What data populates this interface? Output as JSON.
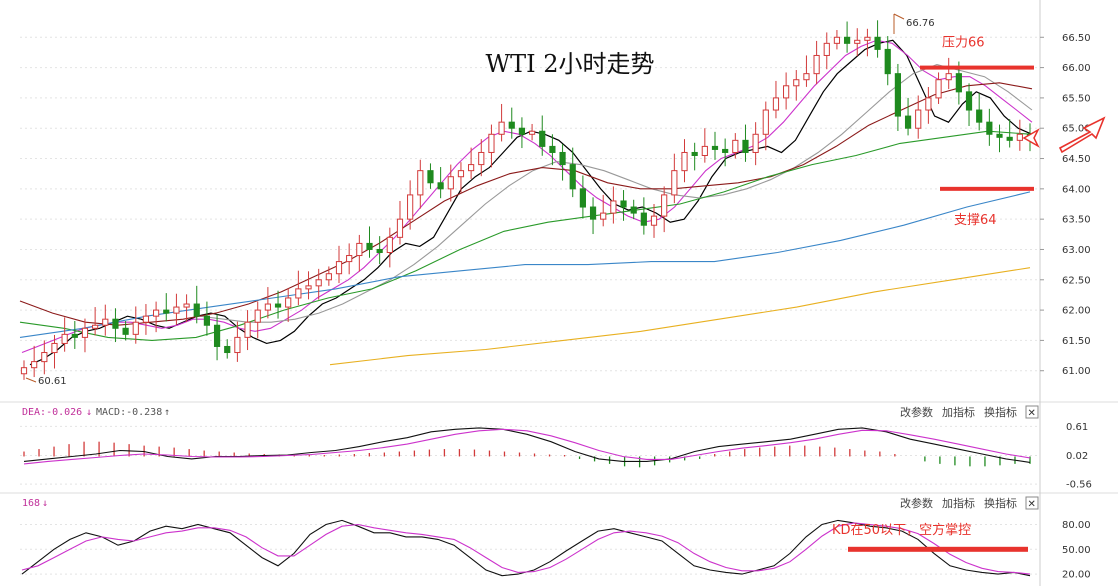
{
  "chart_data": {
    "type": "candlestick",
    "title": "WTI 2小时走势",
    "price_axis": {
      "ylim": [
        60.55,
        66.95
      ],
      "ticks": [
        "66.50",
        "66.00",
        "65.50",
        "65.00",
        "64.50",
        "64.00",
        "63.50",
        "63.00",
        "62.50",
        "62.00",
        "61.50",
        "61.00"
      ],
      "tick_values": [
        66.5,
        66.0,
        65.5,
        65.0,
        64.5,
        64.0,
        63.5,
        63.0,
        62.5,
        62.0,
        61.5,
        61.0
      ]
    },
    "high_marker": "66.76",
    "low_marker": "60.61",
    "closes": [
      61.05,
      61.15,
      61.3,
      61.45,
      61.6,
      61.55,
      61.7,
      61.75,
      61.85,
      61.7,
      61.6,
      61.8,
      61.9,
      62.0,
      61.95,
      62.05,
      62.1,
      61.9,
      61.75,
      61.4,
      61.3,
      61.55,
      61.8,
      62.0,
      62.1,
      62.05,
      62.2,
      62.35,
      62.4,
      62.5,
      62.6,
      62.8,
      62.9,
      63.1,
      63.0,
      62.95,
      63.2,
      63.5,
      63.9,
      64.3,
      64.1,
      64.0,
      64.2,
      64.3,
      64.4,
      64.6,
      64.9,
      65.1,
      65.0,
      64.9,
      64.95,
      64.7,
      64.6,
      64.4,
      64.0,
      63.7,
      63.5,
      63.6,
      63.8,
      63.7,
      63.6,
      63.4,
      63.55,
      63.9,
      64.3,
      64.6,
      64.55,
      64.7,
      64.65,
      64.6,
      64.8,
      64.6,
      64.9,
      65.3,
      65.5,
      65.7,
      65.8,
      65.9,
      66.2,
      66.4,
      66.5,
      66.4,
      66.45,
      66.5,
      66.3,
      65.9,
      65.2,
      65.0,
      65.3,
      65.5,
      65.8,
      65.9,
      65.6,
      65.3,
      65.1,
      64.9,
      64.85,
      64.8,
      64.9,
      64.85
    ],
    "ma_lines": [
      {
        "color": "#000000",
        "values": [
          61.1,
          61.2,
          61.35,
          61.55,
          61.65,
          61.7,
          61.8,
          61.9,
          61.85,
          61.75,
          61.7,
          61.8,
          61.9,
          61.95,
          61.9,
          61.7,
          61.55,
          61.45,
          61.5,
          61.65,
          61.9,
          62.1,
          62.2,
          62.35,
          62.5,
          62.7,
          62.95,
          63.1,
          63.05,
          63.2,
          63.6,
          64.0,
          64.2,
          64.35,
          64.6,
          64.85,
          64.95,
          64.9,
          64.8,
          64.6,
          64.3,
          64.0,
          63.75,
          63.65,
          63.7,
          63.6,
          63.45,
          63.5,
          63.8,
          64.2,
          64.5,
          64.6,
          64.65,
          64.7,
          64.6,
          64.8,
          65.2,
          65.6,
          65.9,
          66.1,
          66.3,
          66.4,
          66.45,
          66.2,
          65.7,
          65.2,
          65.1,
          65.4,
          65.6,
          65.5,
          65.2,
          65.0,
          64.9
        ]
      },
      {
        "color": "#cc33cc",
        "values": [
          61.3,
          61.4,
          61.5,
          61.6,
          61.7,
          61.75,
          61.8,
          61.8,
          61.75,
          61.7,
          61.75,
          61.85,
          61.85,
          61.8,
          61.7,
          61.65,
          61.7,
          61.85,
          62.0,
          62.2,
          62.35,
          62.5,
          62.7,
          62.95,
          63.2,
          63.5,
          63.8,
          64.1,
          64.4,
          64.65,
          64.85,
          64.95,
          64.9,
          64.75,
          64.55,
          64.3,
          64.05,
          63.85,
          63.7,
          63.55,
          63.45,
          63.5,
          63.7,
          64.0,
          64.3,
          64.5,
          64.6,
          64.7,
          64.85,
          65.1,
          65.4,
          65.7,
          65.95,
          66.2,
          66.35,
          66.45,
          66.4,
          66.2,
          65.95,
          65.8,
          65.85,
          65.85,
          65.7,
          65.5,
          65.3,
          65.1
        ]
      },
      {
        "color": "#999999",
        "values": [
          61.9,
          61.85,
          61.8,
          61.8,
          61.85,
          61.95,
          62.1,
          62.3,
          62.5,
          62.75,
          63.05,
          63.4,
          63.75,
          64.05,
          64.3,
          64.45,
          64.4,
          64.3,
          64.15,
          64.0,
          63.9,
          63.85,
          63.9,
          64.0,
          64.15,
          64.35,
          64.6,
          64.9,
          65.25,
          65.6,
          65.9,
          66.05,
          65.95,
          65.85,
          65.6,
          65.3
        ]
      },
      {
        "color": "#8b1a1a",
        "values": [
          62.15,
          61.95,
          61.8,
          61.75,
          61.8,
          61.85,
          61.95,
          62.1,
          62.3,
          62.55,
          62.8,
          63.1,
          63.45,
          63.8,
          64.05,
          64.25,
          64.35,
          64.3,
          64.1,
          64.0,
          64.0,
          64.05,
          64.1,
          64.2,
          64.4,
          64.7,
          65.05,
          65.3,
          65.55,
          65.7,
          65.75,
          65.65
        ]
      },
      {
        "color": "#2a9a2a",
        "values": [
          61.8,
          61.7,
          61.55,
          61.5,
          61.55,
          61.75,
          62.0,
          62.2,
          62.35,
          62.65,
          63.0,
          63.3,
          63.45,
          63.55,
          63.65,
          63.75,
          63.95,
          64.2,
          64.4,
          64.55,
          64.75,
          64.85,
          64.95,
          64.9
        ]
      },
      {
        "color": "#3a86c8",
        "values": [
          61.55,
          61.7,
          61.9,
          62.05,
          62.2,
          62.35,
          62.55,
          62.65,
          62.75,
          62.75,
          62.8,
          62.8,
          62.95,
          63.15,
          63.4,
          63.7,
          63.95
        ]
      },
      {
        "color": "#e8b020",
        "values": [
          61.1,
          61.25,
          61.35,
          61.5,
          61.65,
          61.85,
          62.05,
          62.3,
          62.5,
          62.7
        ]
      }
    ],
    "annotations": {
      "title": "WTI 2小时走势",
      "resistance": "压力66",
      "support": "支撑64",
      "resistance_value": 66.0,
      "support_value": 64.0,
      "kd_note": "KD在50以下，空方掌控",
      "kd_level": 50
    },
    "macd": {
      "legend_dea": "DEA:-0.026",
      "legend_macd": "MACD:-0.238",
      "arrow_down": "↓",
      "arrow_up": "↑",
      "ticks": [
        "0.61",
        "0.02",
        "-0.56"
      ],
      "tick_values": [
        0.61,
        0.02,
        -0.56
      ],
      "ylim": [
        -0.68,
        0.78
      ],
      "dif": [
        -0.1,
        -0.05,
        0.0,
        0.05,
        0.12,
        0.1,
        0.0,
        -0.05,
        0.0,
        0.0,
        0.02,
        0.03,
        0.08,
        0.12,
        0.2,
        0.3,
        0.38,
        0.5,
        0.55,
        0.58,
        0.55,
        0.45,
        0.3,
        0.1,
        -0.05,
        -0.1,
        -0.1,
        -0.05,
        0.1,
        0.2,
        0.25,
        0.3,
        0.35,
        0.45,
        0.55,
        0.58,
        0.5,
        0.35,
        0.25,
        0.15,
        0.05,
        -0.05,
        -0.12
      ],
      "dea": [
        -0.15,
        -0.1,
        -0.06,
        -0.02,
        0.02,
        0.05,
        0.03,
        0.0,
        -0.01,
        -0.01,
        0.0,
        0.02,
        0.04,
        0.08,
        0.12,
        0.18,
        0.25,
        0.35,
        0.45,
        0.52,
        0.55,
        0.52,
        0.42,
        0.28,
        0.12,
        0.0,
        -0.06,
        -0.06,
        0.02,
        0.1,
        0.17,
        0.22,
        0.28,
        0.35,
        0.45,
        0.53,
        0.52,
        0.44,
        0.35,
        0.25,
        0.15,
        0.05,
        -0.03
      ],
      "hist": [
        0.1,
        0.15,
        0.2,
        0.25,
        0.3,
        0.3,
        0.28,
        0.25,
        0.22,
        0.2,
        0.18,
        0.15,
        0.12,
        0.1,
        0.08,
        0.06,
        0.05,
        0.04,
        0.03,
        0.03,
        0.03,
        0.04,
        0.05,
        0.07,
        0.08,
        0.1,
        0.12,
        0.14,
        0.15,
        0.15,
        0.14,
        0.12,
        0.1,
        0.08,
        0.06,
        0.04,
        0.03,
        -0.05,
        -0.1,
        -0.15,
        -0.2,
        -0.22,
        -0.18,
        -0.12,
        -0.08,
        -0.05,
        0.05,
        0.1,
        0.15,
        0.18,
        0.2,
        0.22,
        0.22,
        0.2,
        0.18,
        0.15,
        0.12,
        0.1,
        0.05,
        0.0,
        -0.1,
        -0.15,
        -0.18,
        -0.2,
        -0.2,
        -0.18,
        -0.15,
        -0.15
      ]
    },
    "kd": {
      "legend": "168",
      "legend_arrow": "↓",
      "ticks": [
        "80.00",
        "50.00",
        "20.00"
      ],
      "tick_values": [
        80,
        50,
        20
      ],
      "ylim": [
        8,
        100
      ],
      "k": [
        20,
        35,
        50,
        62,
        70,
        65,
        55,
        60,
        72,
        78,
        75,
        80,
        75,
        70,
        55,
        40,
        30,
        45,
        68,
        80,
        85,
        78,
        70,
        70,
        65,
        65,
        62,
        55,
        40,
        25,
        18,
        20,
        25,
        35,
        48,
        60,
        72,
        75,
        70,
        65,
        60,
        45,
        30,
        25,
        22,
        20,
        25,
        30,
        45,
        65,
        80,
        85,
        82,
        78,
        76,
        72,
        62,
        45,
        30,
        25,
        22,
        20,
        22,
        18
      ],
      "d": [
        25,
        30,
        40,
        50,
        60,
        65,
        62,
        60,
        65,
        70,
        72,
        76,
        76,
        73,
        65,
        52,
        42,
        42,
        55,
        68,
        78,
        80,
        76,
        73,
        70,
        68,
        65,
        62,
        52,
        40,
        28,
        22,
        23,
        28,
        38,
        50,
        62,
        70,
        72,
        70,
        66,
        58,
        45,
        35,
        28,
        24,
        24,
        27,
        35,
        50,
        66,
        78,
        82,
        80,
        78,
        75,
        69,
        57,
        44,
        34,
        27,
        23,
        22,
        20
      ]
    },
    "toolbar": {
      "params": "改参数",
      "add": "加指标",
      "switch": "换指标",
      "close": "✕"
    }
  }
}
